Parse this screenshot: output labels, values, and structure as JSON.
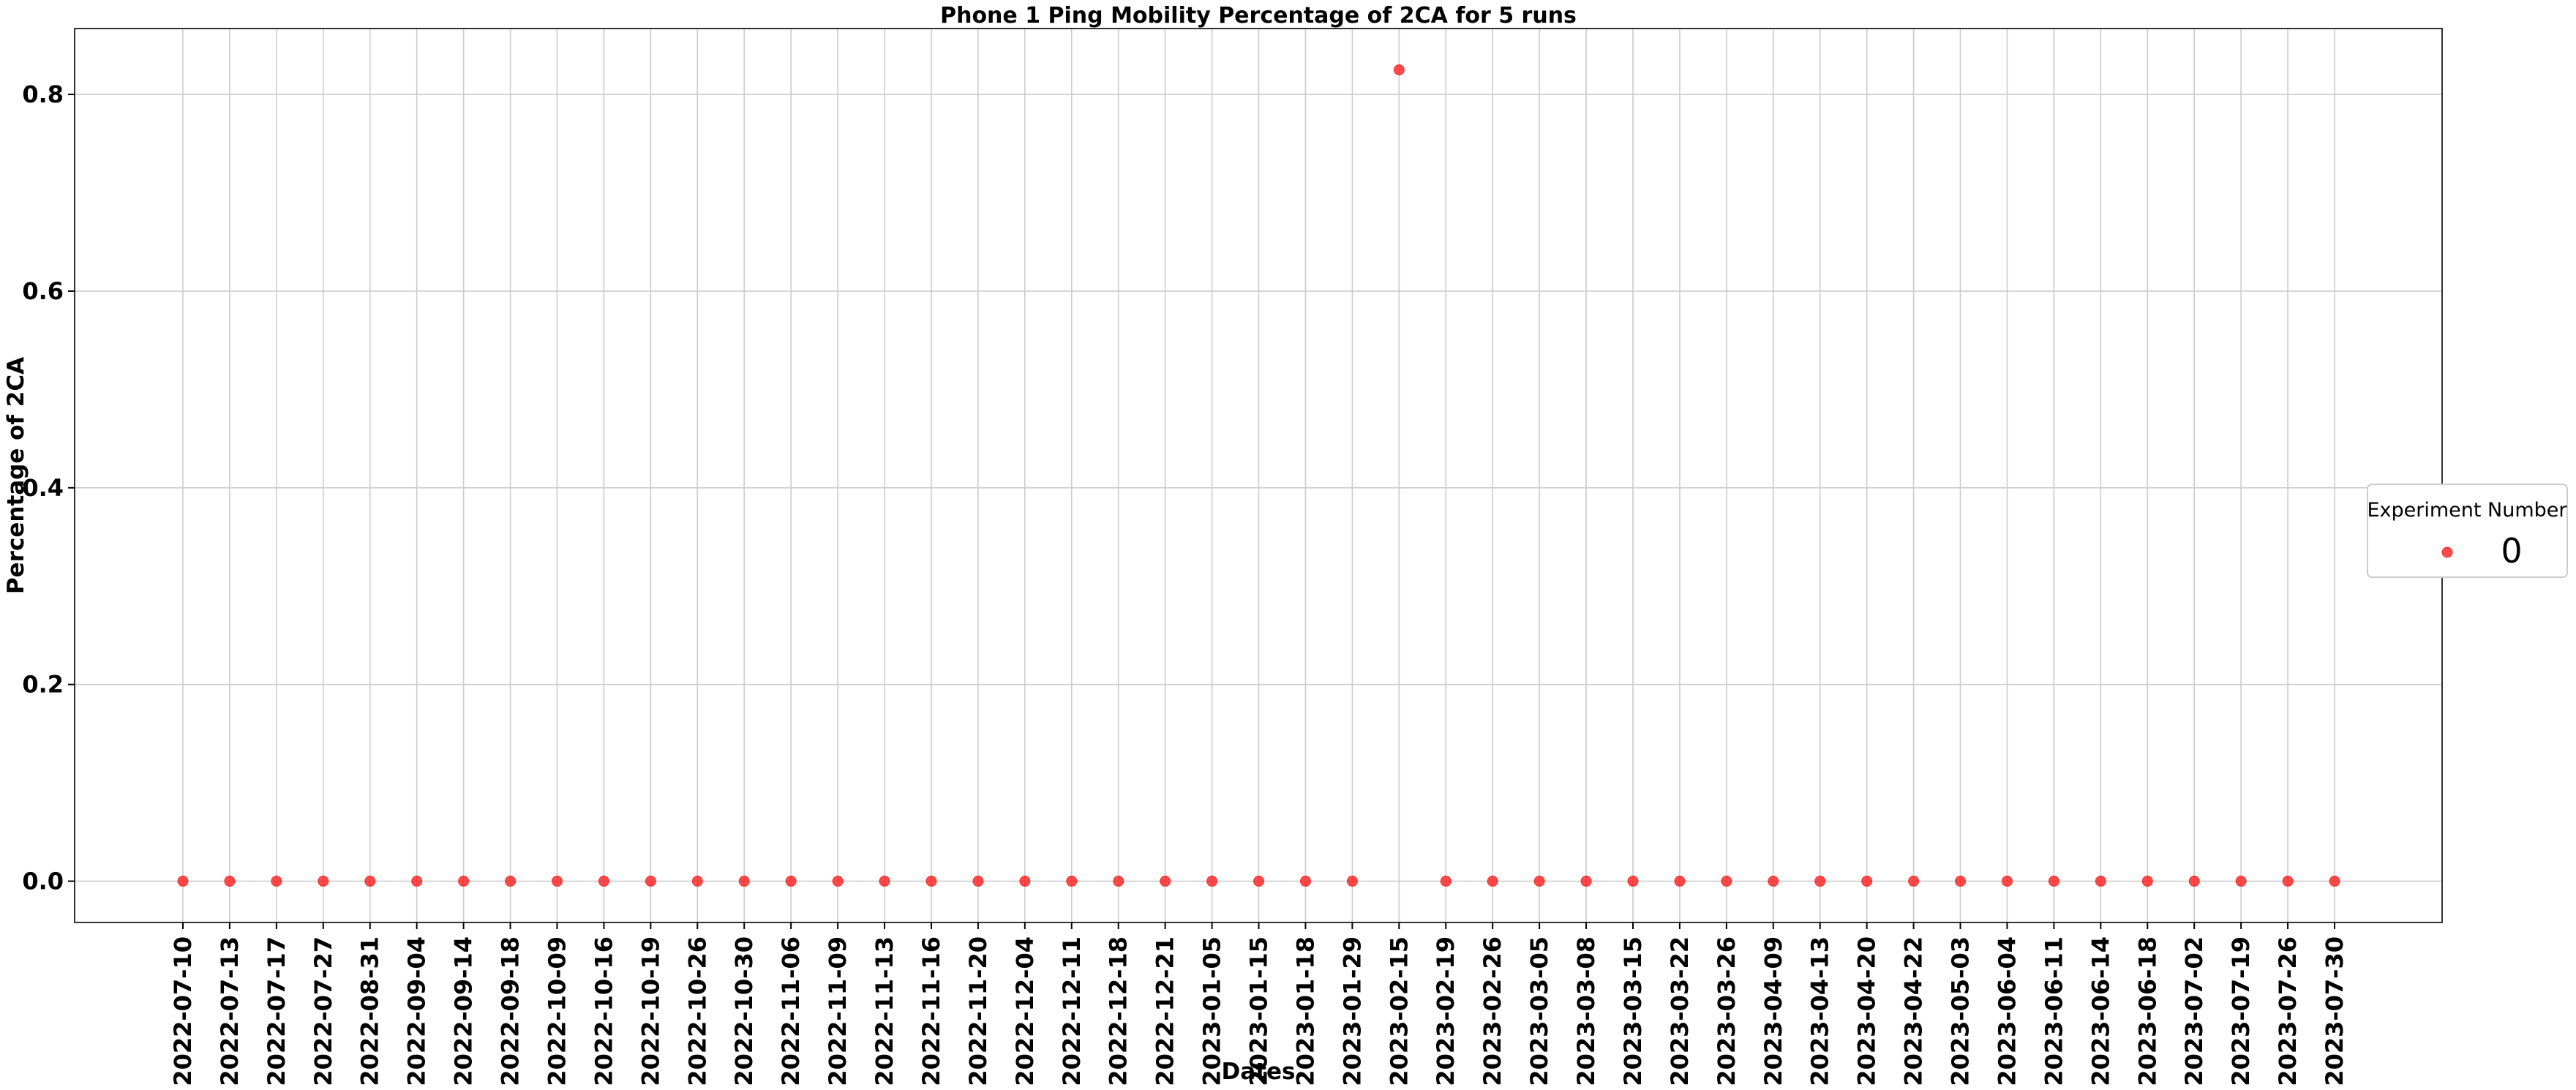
{
  "chart_data": {
    "type": "scatter",
    "title": "Phone 1 Ping Mobility Percentage of 2CA for 5 runs",
    "xlabel": "Dates",
    "ylabel": "Percentage of 2CA",
    "categories": [
      "2022-07-10",
      "2022-07-13",
      "2022-07-17",
      "2022-07-27",
      "2022-08-31",
      "2022-09-04",
      "2022-09-14",
      "2022-09-18",
      "2022-10-09",
      "2022-10-16",
      "2022-10-19",
      "2022-10-26",
      "2022-10-30",
      "2022-11-06",
      "2022-11-09",
      "2022-11-13",
      "2022-11-16",
      "2022-11-20",
      "2022-12-04",
      "2022-12-11",
      "2022-12-18",
      "2022-12-21",
      "2023-01-05",
      "2023-01-15",
      "2023-01-18",
      "2023-01-29",
      "2023-02-15",
      "2023-02-19",
      "2023-02-26",
      "2023-03-05",
      "2023-03-08",
      "2023-03-15",
      "2023-03-22",
      "2023-03-26",
      "2023-04-09",
      "2023-04-13",
      "2023-04-20",
      "2023-04-22",
      "2023-05-03",
      "2023-06-04",
      "2023-06-11",
      "2023-06-14",
      "2023-06-18",
      "2023-07-02",
      "2023-07-19",
      "2023-07-26",
      "2023-07-30"
    ],
    "series": [
      {
        "name": "0",
        "color": "#ff0000",
        "values": [
          0,
          0,
          0,
          0,
          0,
          0,
          0,
          0,
          0,
          0,
          0,
          0,
          0,
          0,
          0,
          0,
          0,
          0,
          0,
          0,
          0,
          0,
          0,
          0,
          0,
          0,
          0.825,
          0,
          0,
          0,
          0,
          0,
          0,
          0,
          0,
          0,
          0,
          0,
          0,
          0,
          0,
          0,
          0,
          0,
          0,
          0,
          0
        ]
      }
    ],
    "ylim": [
      -0.042,
      0.867
    ],
    "yticks": [
      "0.0",
      "0.2",
      "0.4",
      "0.6",
      "0.8"
    ],
    "grid": true,
    "legend": {
      "title": "Experiment Number",
      "placement": "right"
    }
  }
}
